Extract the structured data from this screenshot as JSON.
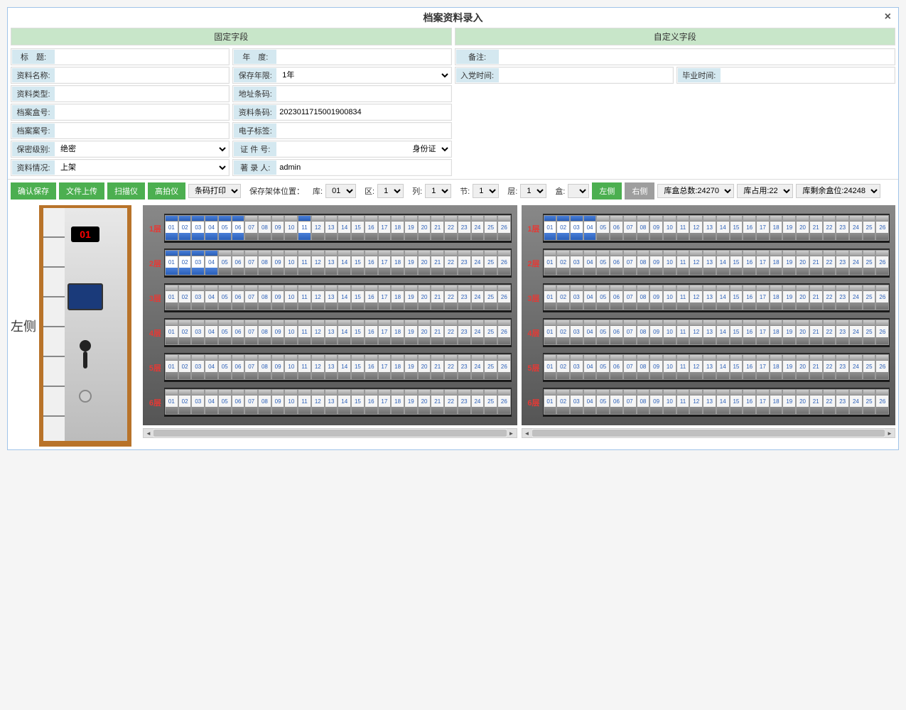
{
  "title": "档案资料录入",
  "sections": {
    "fixed": "固定字段",
    "custom": "自定义字段"
  },
  "fields": {
    "title_label": "标　题:",
    "title_val": "",
    "name_label": "资料名称:",
    "name_val": "",
    "type_label": "资料类型:",
    "type_val": "",
    "boxno_label": "档案盒号:",
    "boxno_val": "",
    "caseno_label": "档案案号:",
    "caseno_val": "",
    "secret_label": "保密级别:",
    "secret_val": "绝密",
    "status_label": "资料情况:",
    "status_val": "上架",
    "year_label": "年　度:",
    "year_val": "",
    "keep_label": "保存年限:",
    "keep_val": "1年",
    "addr_label": "地址条码:",
    "addr_val": "",
    "barcode_label": "资料条码:",
    "barcode_val": "2023011715001900834",
    "etag_label": "电子标签:",
    "etag_val": "",
    "idno_label": "证 件 号:",
    "idno_val": "",
    "idno_type": "身份证",
    "author_label": "著 录 人:",
    "author_val": "admin",
    "remark_label": "备注:",
    "remark_val": "",
    "join_label": "入党时间:",
    "join_val": "",
    "grad_label": "毕业时间:",
    "grad_val": ""
  },
  "toolbar": {
    "save": "确认保存",
    "upload": "文件上传",
    "scanner": "扫描仪",
    "camera": "高拍仪",
    "print_sel": "条码打印",
    "pos_label": "保存架体位置：",
    "ku_label": "库:",
    "ku_val": "01",
    "qu_label": "区:",
    "qu_val": "1",
    "lie_label": "列:",
    "lie_val": "1",
    "jie_label": "节:",
    "jie_val": "1",
    "ceng_label": "层:",
    "ceng_val": "1",
    "he_label": "盒:",
    "he_val": "",
    "left": "左侧",
    "right": "右侧",
    "total": "库盒总数:24270",
    "used": "库占用:22",
    "remain": "库剩余盒位:24248"
  },
  "cabinet": {
    "side_label": "左侧",
    "display": "01"
  },
  "shelves": {
    "rows": 6,
    "boxes_per_row": 26,
    "row_label_suffix": "层",
    "left_blue": {
      "1": [
        1,
        2,
        3,
        4,
        5,
        6,
        11
      ],
      "2": [
        1,
        2,
        3,
        4
      ]
    },
    "right_blue": {
      "1": [
        1,
        2,
        3,
        4
      ]
    }
  },
  "colors": {
    "header_green": "#c8e6c9",
    "btn_green": "#4caf50",
    "btn_gray": "#9e9e9e",
    "label_blue": "#d4e8f0",
    "row_red": "#e53935",
    "box_blue": "#2a5fb8",
    "cabinet_wood": "#b8732a"
  }
}
